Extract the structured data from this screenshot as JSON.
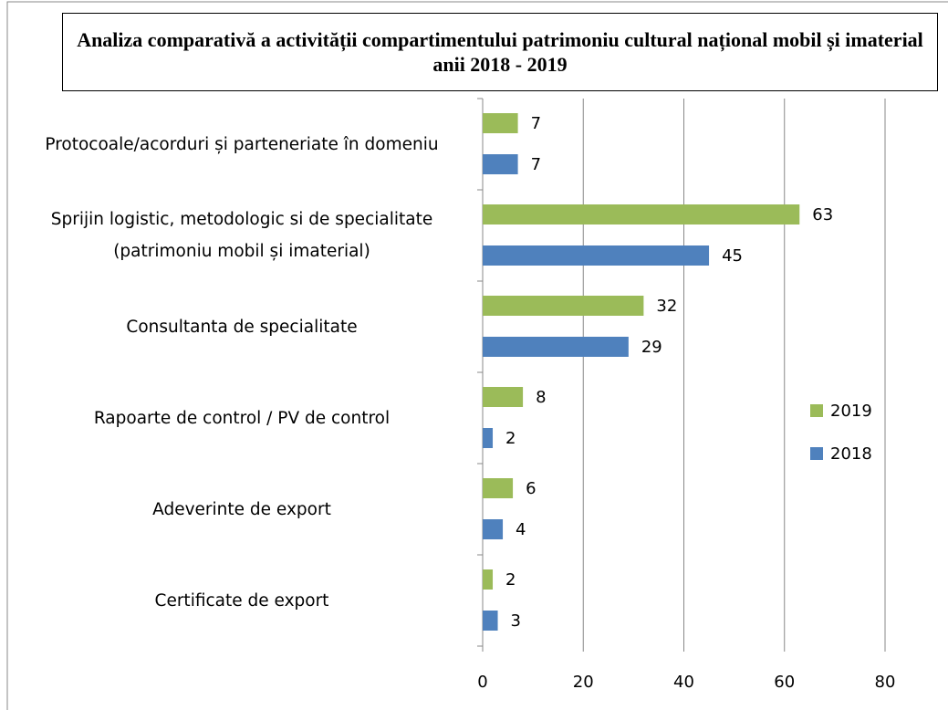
{
  "chart_data": {
    "type": "bar",
    "orientation": "horizontal",
    "title": "Analiza comparativă a activității compartimentului patrimoniu cultural național mobil și imaterial anii 2018 - 2019",
    "categories": [
      "Protocoale/acorduri și parteneriate în domeniu",
      "Sprijin logistic, metodologic si de specialitate (patrimoniu mobil și imaterial)",
      "Consultanta de specialitate",
      "Rapoarte de control / PV de control",
      "Adeverinte de export",
      "Certificate de export"
    ],
    "series": [
      {
        "name": "2019",
        "color": "#9bbb59",
        "values": [
          7,
          63,
          32,
          8,
          6,
          2
        ]
      },
      {
        "name": "2018",
        "color": "#4f81bd",
        "values": [
          7,
          45,
          29,
          2,
          4,
          3
        ]
      }
    ],
    "xlim": [
      0,
      80
    ],
    "xticks": [
      0,
      20,
      40,
      60,
      80
    ],
    "grid": true,
    "legend": "right"
  }
}
